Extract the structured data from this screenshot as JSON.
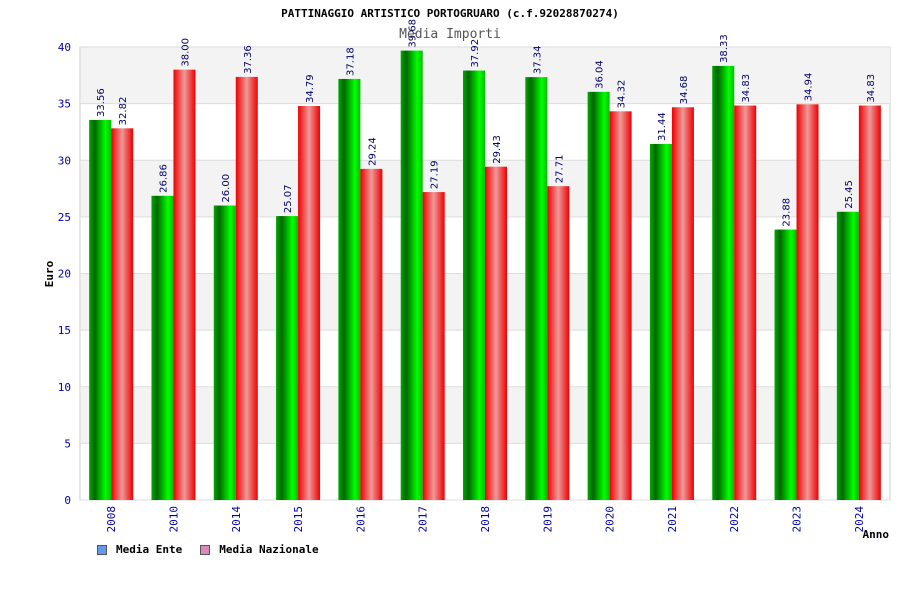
{
  "chart_data": {
    "type": "bar",
    "title": "PATTINAGGIO ARTISTICO PORTOGRUARO (c.f.92028870274)",
    "subtitle": "Media Importi",
    "xlabel": "Anno",
    "ylabel": "Euro",
    "ylim": [
      0,
      40
    ],
    "yticks": [
      0,
      5,
      10,
      15,
      20,
      25,
      30,
      35,
      40
    ],
    "grid": true,
    "legend_position": "bottom-left",
    "categories": [
      "2008",
      "2010",
      "2014",
      "2015",
      "2016",
      "2017",
      "2018",
      "2019",
      "2020",
      "2021",
      "2022",
      "2023",
      "2024"
    ],
    "series": [
      {
        "name": "Media Ente",
        "legend_color": "#6699ee",
        "bar_color": "#00cc00",
        "values": [
          33.56,
          26.86,
          26.0,
          25.07,
          37.18,
          39.68,
          37.92,
          37.34,
          36.04,
          31.44,
          38.33,
          23.88,
          25.45
        ],
        "labels": [
          "33.56",
          "26.86",
          "26.00",
          "25.07",
          "37.18",
          "39.68",
          "37.92",
          "37.34",
          "36.04",
          "31.44",
          "38.33",
          "23.88",
          "25.45"
        ]
      },
      {
        "name": "Media Nazionale",
        "legend_color": "#dd88bb",
        "bar_color": "#ee1111",
        "values": [
          32.82,
          38.0,
          37.36,
          34.79,
          29.24,
          27.19,
          29.43,
          27.71,
          34.32,
          34.68,
          34.83,
          34.94,
          34.83
        ],
        "labels": [
          "32.82",
          "38.00",
          "37.36",
          "34.79",
          "29.24",
          "27.19",
          "29.43",
          "27.71",
          "34.32",
          "34.68",
          "34.83",
          "34.94",
          "34.83"
        ]
      }
    ]
  }
}
